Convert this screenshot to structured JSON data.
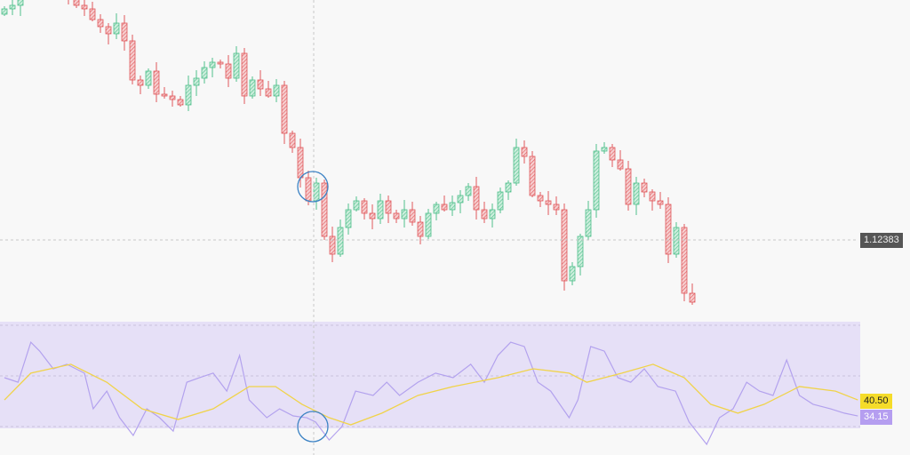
{
  "chart_data": [
    {
      "type": "candlestick",
      "title": "",
      "price_line": 1.12383,
      "price_label": "1.12383",
      "x": "bar index",
      "closes": [
        1.137,
        1.1372,
        1.1385,
        1.139,
        1.1392,
        1.139,
        1.1387,
        1.1382,
        1.1377,
        1.1372,
        1.137,
        1.1364,
        1.136,
        1.1356,
        1.1362,
        1.1352,
        1.133,
        1.1327,
        1.1335,
        1.1322,
        1.1321,
        1.1319,
        1.1316,
        1.1327,
        1.1331,
        1.1337,
        1.134,
        1.1339,
        1.1331,
        1.1345,
        1.1321,
        1.133,
        1.1325,
        1.1321,
        1.1327,
        1.13,
        1.1292,
        1.1275,
        1.1262,
        1.1272,
        1.1242,
        1.1232,
        1.1247,
        1.1257,
        1.1262,
        1.1255,
        1.1252,
        1.1262,
        1.1255,
        1.1252,
        1.1257,
        1.125,
        1.1242,
        1.1255,
        1.126,
        1.1257,
        1.1261,
        1.1265,
        1.127,
        1.1257,
        1.1252,
        1.1257,
        1.1267,
        1.1272,
        1.1292,
        1.1287,
        1.1265,
        1.1262,
        1.126,
        1.1257,
        1.1217,
        1.1225,
        1.1242,
        1.1257,
        1.129,
        1.1292,
        1.1285,
        1.128,
        1.126,
        1.1272,
        1.1267,
        1.1262,
        1.126,
        1.1232,
        1.1247,
        1.121,
        1.1205
      ],
      "colors": {
        "up": "#4fbf8b",
        "down": "#e0575b"
      }
    },
    {
      "type": "line",
      "title": "",
      "ylim": [
        30,
        70
      ],
      "levels": [
        30,
        50,
        70
      ],
      "band_color": "#e6e0f7",
      "series": [
        {
          "color": "#b3a2ee",
          "last_label": "34.15",
          "points": [
            [
              0,
              49.3
            ],
            [
              1.7,
              47.5
            ],
            [
              3.3,
              63.3
            ],
            [
              4.4,
              59.8
            ],
            [
              6.1,
              52.8
            ],
            [
              7.8,
              54.6
            ],
            [
              10,
              51.1
            ],
            [
              11.1,
              37.0
            ],
            [
              12.8,
              44.0
            ],
            [
              14.4,
              33.5
            ],
            [
              16.1,
              26.5
            ],
            [
              17.8,
              37.0
            ],
            [
              19.4,
              33.5
            ],
            [
              21.1,
              28.2
            ],
            [
              22.8,
              47.5
            ],
            [
              24.4,
              49.3
            ],
            [
              26.1,
              51.1
            ],
            [
              27.8,
              44.0
            ],
            [
              29.4,
              58.1
            ],
            [
              30.6,
              40.5
            ],
            [
              32.8,
              33.5
            ],
            [
              34.4,
              37.0
            ],
            [
              36.1,
              34.2
            ],
            [
              37.8,
              33.5
            ],
            [
              38.9,
              31.8
            ],
            [
              40.6,
              24.7
            ],
            [
              42.2,
              30.0
            ],
            [
              43.9,
              44.0
            ],
            [
              46.1,
              42.3
            ],
            [
              47.8,
              47.5
            ],
            [
              49.4,
              42.3
            ],
            [
              51.7,
              47.5
            ],
            [
              53.9,
              51.1
            ],
            [
              56.1,
              49.3
            ],
            [
              58.3,
              54.6
            ],
            [
              60,
              47.5
            ],
            [
              61.7,
              58.1
            ],
            [
              63.3,
              63.3
            ],
            [
              65,
              61.6
            ],
            [
              66.7,
              47.5
            ],
            [
              68.3,
              44.0
            ],
            [
              70.6,
              33.5
            ],
            [
              71.7,
              40.5
            ],
            [
              73.3,
              61.6
            ],
            [
              75,
              59.8
            ],
            [
              76.7,
              49.3
            ],
            [
              78.3,
              47.5
            ],
            [
              80,
              52.8
            ],
            [
              81.7,
              45.8
            ],
            [
              83.9,
              44.0
            ],
            [
              85.6,
              31.8
            ],
            [
              87.8,
              23.0
            ],
            [
              89.4,
              33.5
            ],
            [
              91.1,
              37.0
            ],
            [
              92.8,
              47.5
            ],
            [
              94.4,
              44.0
            ],
            [
              96.1,
              42.3
            ],
            [
              97.8,
              56.3
            ],
            [
              99.4,
              42.3
            ],
            [
              101.1,
              38.8
            ],
            [
              103.3,
              37.0
            ],
            [
              105,
              35.3
            ],
            [
              106.7,
              34.2
            ]
          ]
        },
        {
          "color": "#f0d34a",
          "last_label": "40.50",
          "points": [
            [
              0,
              40.5
            ],
            [
              3.3,
              51.1
            ],
            [
              8.3,
              54.6
            ],
            [
              12.8,
              47.5
            ],
            [
              17.2,
              37.0
            ],
            [
              21.7,
              32.8
            ],
            [
              26.1,
              37.0
            ],
            [
              30.6,
              45.8
            ],
            [
              33.9,
              45.8
            ],
            [
              37.2,
              38.8
            ],
            [
              40.6,
              33.5
            ],
            [
              43.3,
              30.7
            ],
            [
              47.2,
              35.3
            ],
            [
              51.7,
              42.3
            ],
            [
              56.1,
              45.8
            ],
            [
              61.7,
              49.3
            ],
            [
              66.1,
              52.8
            ],
            [
              70.6,
              51.1
            ],
            [
              72.8,
              47.5
            ],
            [
              77.2,
              51.1
            ],
            [
              81.1,
              54.6
            ],
            [
              85,
              49.3
            ],
            [
              88.3,
              38.8
            ],
            [
              91.7,
              35.3
            ],
            [
              95,
              38.8
            ],
            [
              99.4,
              45.8
            ],
            [
              103.9,
              44.0
            ],
            [
              106.7,
              40.5
            ]
          ]
        }
      ]
    }
  ]
}
